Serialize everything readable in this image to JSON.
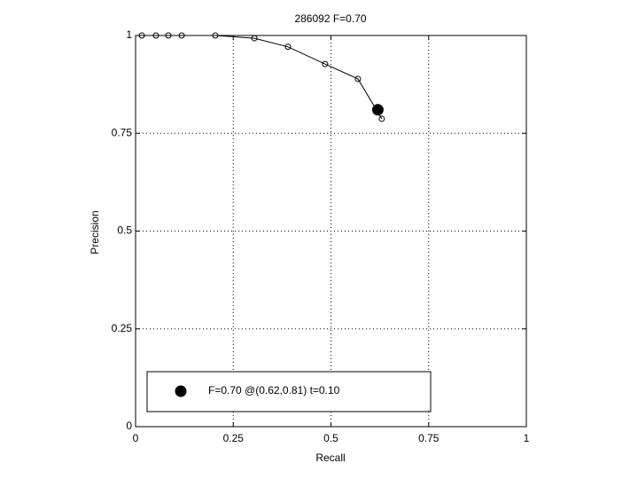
{
  "chart_data": {
    "type": "line",
    "title": "286092 F=0.70",
    "xlabel": "Recall",
    "ylabel": "Precision",
    "xlim": [
      0,
      1
    ],
    "ylim": [
      0,
      1
    ],
    "xticks": [
      0,
      0.25,
      0.5,
      0.75,
      1
    ],
    "yticks": [
      0,
      0.25,
      0.5,
      0.75,
      1
    ],
    "grid": true,
    "legend": "lower left",
    "series": [
      {
        "color": "#000000",
        "marker": "open",
        "linestyle": "solid",
        "x": [
          0.016,
          0.052,
          0.084,
          0.118,
          0.204,
          0.304,
          0.39,
          0.485,
          0.569,
          0.63
        ],
        "values": [
          1,
          1,
          1,
          1,
          1,
          0.993,
          0.971,
          0.927,
          0.889,
          0.787
        ]
      },
      {
        "name": "F=0.70 @(0.62,0.81) t=0.10",
        "color": "#000000",
        "marker": "filled",
        "linestyle": "none",
        "x": [
          0.62
        ],
        "values": [
          0.81
        ]
      }
    ]
  }
}
